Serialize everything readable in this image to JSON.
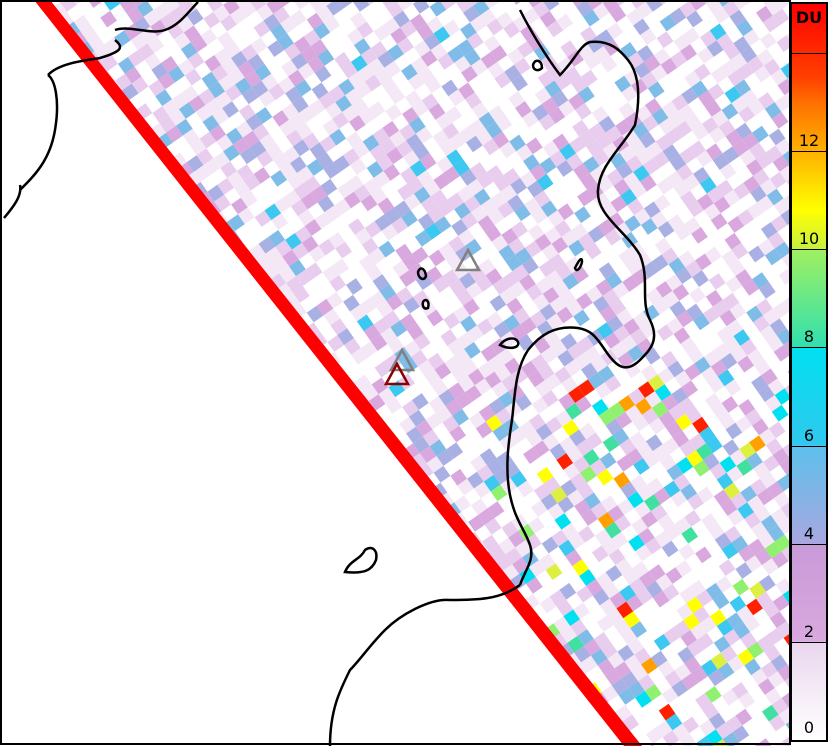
{
  "colorbar": {
    "unit_label": "DU",
    "ticks": [
      {
        "value": 0,
        "label": "0"
      },
      {
        "value": 2,
        "label": "2"
      },
      {
        "value": 4,
        "label": "4"
      },
      {
        "value": 6,
        "label": "6"
      },
      {
        "value": 8,
        "label": "8"
      },
      {
        "value": 10,
        "label": "10"
      },
      {
        "value": 12,
        "label": "12"
      },
      {
        "value": 14,
        "label": ""
      }
    ],
    "range": [
      0,
      15
    ],
    "colors": [
      "#ffffff",
      "#d9a8de",
      "#a8a8e0",
      "#30c8ee",
      "#00e0f0",
      "#a0f060",
      "#ffff00",
      "#ff7000",
      "#ff0000"
    ]
  },
  "swath_edge_color": "#ff0000",
  "markers": [
    {
      "type": "volcano-triangle",
      "color": "#808080"
    },
    {
      "type": "volcano-triangle",
      "color": "#808080"
    },
    {
      "type": "volcano-triangle",
      "color": "#8b0000"
    }
  ]
}
